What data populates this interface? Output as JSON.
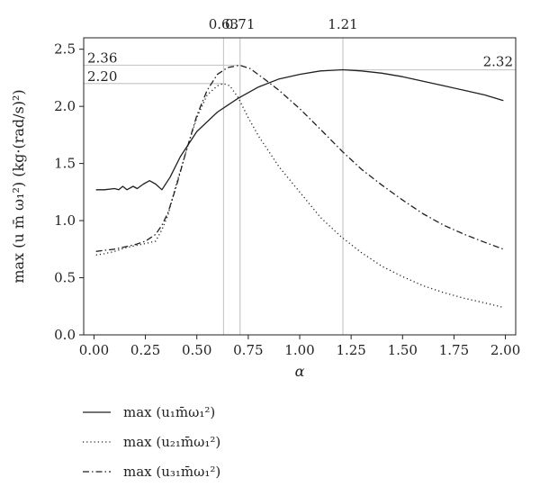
{
  "chart_data": {
    "type": "line",
    "xlabel": "α",
    "ylabel": "max (u m̄ ω₁²) (kg·(rad/s)²)",
    "xlim": [
      -0.05,
      2.05
    ],
    "ylim": [
      0.0,
      2.6
    ],
    "x_ticks": [
      0.0,
      0.25,
      0.5,
      0.75,
      1.0,
      1.25,
      1.5,
      1.75,
      2.0
    ],
    "x_tick_labels": [
      "0.00",
      "0.25",
      "0.50",
      "0.75",
      "1.00",
      "1.25",
      "1.50",
      "1.75",
      "2.00"
    ],
    "y_ticks": [
      0.0,
      0.5,
      1.0,
      1.5,
      2.0,
      2.5
    ],
    "y_tick_labels": [
      "0.0",
      "0.5",
      "1.0",
      "1.5",
      "2.0",
      "2.5"
    ],
    "grid": false,
    "legend_placement": "below",
    "reference_lines": {
      "vertical": [
        {
          "x": 0.63,
          "label": "0.63"
        },
        {
          "x": 0.71,
          "label": "0.71"
        },
        {
          "x": 1.21,
          "label": "1.21"
        }
      ],
      "horizontal": [
        {
          "y": 2.36,
          "label": "2.36",
          "side": "left"
        },
        {
          "y": 2.2,
          "label": "2.20",
          "side": "left"
        },
        {
          "y": 2.32,
          "label": "2.32",
          "side": "right"
        }
      ]
    },
    "series": [
      {
        "name": "max (u₁m̄ω₁²)",
        "style": "solid",
        "points": [
          [
            0.01,
            1.27
          ],
          [
            0.05,
            1.27
          ],
          [
            0.1,
            1.28
          ],
          [
            0.12,
            1.27
          ],
          [
            0.14,
            1.3
          ],
          [
            0.16,
            1.27
          ],
          [
            0.19,
            1.3
          ],
          [
            0.21,
            1.28
          ],
          [
            0.24,
            1.32
          ],
          [
            0.27,
            1.35
          ],
          [
            0.3,
            1.32
          ],
          [
            0.33,
            1.27
          ],
          [
            0.37,
            1.38
          ],
          [
            0.42,
            1.56
          ],
          [
            0.5,
            1.78
          ],
          [
            0.6,
            1.95
          ],
          [
            0.7,
            2.07
          ],
          [
            0.8,
            2.17
          ],
          [
            0.9,
            2.24
          ],
          [
            1.0,
            2.28
          ],
          [
            1.1,
            2.31
          ],
          [
            1.21,
            2.32
          ],
          [
            1.3,
            2.31
          ],
          [
            1.4,
            2.29
          ],
          [
            1.5,
            2.26
          ],
          [
            1.6,
            2.22
          ],
          [
            1.7,
            2.18
          ],
          [
            1.8,
            2.14
          ],
          [
            1.9,
            2.1
          ],
          [
            1.99,
            2.05
          ]
        ]
      },
      {
        "name": "max (u₂₁m̄ω₁²)",
        "style": "dotted",
        "points": [
          [
            0.01,
            0.7
          ],
          [
            0.05,
            0.71
          ],
          [
            0.1,
            0.73
          ],
          [
            0.15,
            0.76
          ],
          [
            0.2,
            0.78
          ],
          [
            0.25,
            0.8
          ],
          [
            0.3,
            0.82
          ],
          [
            0.33,
            0.92
          ],
          [
            0.36,
            1.05
          ],
          [
            0.4,
            1.32
          ],
          [
            0.45,
            1.62
          ],
          [
            0.5,
            1.9
          ],
          [
            0.55,
            2.1
          ],
          [
            0.6,
            2.18
          ],
          [
            0.63,
            2.2
          ],
          [
            0.66,
            2.18
          ],
          [
            0.7,
            2.08
          ],
          [
            0.75,
            1.9
          ],
          [
            0.8,
            1.74
          ],
          [
            0.9,
            1.47
          ],
          [
            1.0,
            1.25
          ],
          [
            1.1,
            1.03
          ],
          [
            1.2,
            0.86
          ],
          [
            1.3,
            0.72
          ],
          [
            1.4,
            0.6
          ],
          [
            1.5,
            0.51
          ],
          [
            1.6,
            0.43
          ],
          [
            1.7,
            0.37
          ],
          [
            1.8,
            0.32
          ],
          [
            1.9,
            0.28
          ],
          [
            1.99,
            0.24
          ]
        ]
      },
      {
        "name": "max (u₃₁m̄ω₁²)",
        "style": "dashdot",
        "points": [
          [
            0.01,
            0.73
          ],
          [
            0.05,
            0.74
          ],
          [
            0.1,
            0.75
          ],
          [
            0.15,
            0.77
          ],
          [
            0.2,
            0.79
          ],
          [
            0.25,
            0.82
          ],
          [
            0.3,
            0.88
          ],
          [
            0.33,
            0.96
          ],
          [
            0.36,
            1.07
          ],
          [
            0.4,
            1.3
          ],
          [
            0.45,
            1.62
          ],
          [
            0.5,
            1.92
          ],
          [
            0.55,
            2.14
          ],
          [
            0.6,
            2.28
          ],
          [
            0.65,
            2.34
          ],
          [
            0.71,
            2.36
          ],
          [
            0.76,
            2.33
          ],
          [
            0.82,
            2.25
          ],
          [
            0.9,
            2.14
          ],
          [
            1.0,
            1.98
          ],
          [
            1.1,
            1.8
          ],
          [
            1.21,
            1.6
          ],
          [
            1.3,
            1.45
          ],
          [
            1.4,
            1.31
          ],
          [
            1.5,
            1.18
          ],
          [
            1.6,
            1.06
          ],
          [
            1.7,
            0.96
          ],
          [
            1.8,
            0.88
          ],
          [
            1.9,
            0.81
          ],
          [
            1.99,
            0.75
          ]
        ]
      }
    ]
  }
}
